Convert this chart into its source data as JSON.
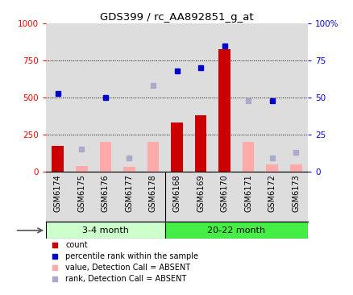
{
  "title": "GDS399 / rc_AA892851_g_at",
  "samples": [
    "GSM6174",
    "GSM6175",
    "GSM6176",
    "GSM6177",
    "GSM6178",
    "GSM6168",
    "GSM6169",
    "GSM6170",
    "GSM6171",
    "GSM6172",
    "GSM6173"
  ],
  "group1_label": "3-4 month",
  "group2_label": "20-22 month",
  "group1_count": 5,
  "group2_count": 6,
  "bar_color_present": "#cc0000",
  "bar_color_absent": "#ffaaaa",
  "dot_color_present": "#0000cc",
  "dot_color_absent": "#aaaacc",
  "ylim_left": [
    0,
    1000
  ],
  "ylim_right": [
    0,
    100
  ],
  "yticks_left": [
    0,
    250,
    500,
    750,
    1000
  ],
  "yticks_right": [
    0,
    25,
    50,
    75,
    100
  ],
  "ytick_labels_right": [
    "0",
    "25",
    "50",
    "75",
    "100%"
  ],
  "ytick_labels_left": [
    "0",
    "250",
    "500",
    "750",
    "1000"
  ],
  "hlines": [
    250,
    500,
    750
  ],
  "count_values": [
    175,
    null,
    null,
    null,
    null,
    330,
    380,
    830,
    null,
    null,
    null
  ],
  "rank_values": [
    53,
    null,
    50,
    null,
    null,
    68,
    70,
    85,
    null,
    48,
    null
  ],
  "absent_count_values": [
    null,
    40,
    200,
    30,
    200,
    null,
    null,
    null,
    200,
    50,
    50
  ],
  "absent_rank_values": [
    null,
    15,
    null,
    9,
    58,
    null,
    null,
    null,
    48,
    9,
    13
  ],
  "group1_bg": "#ccffcc",
  "group2_bg": "#44ee44",
  "sample_bg": "#dddddd",
  "bar_width": 0.5
}
